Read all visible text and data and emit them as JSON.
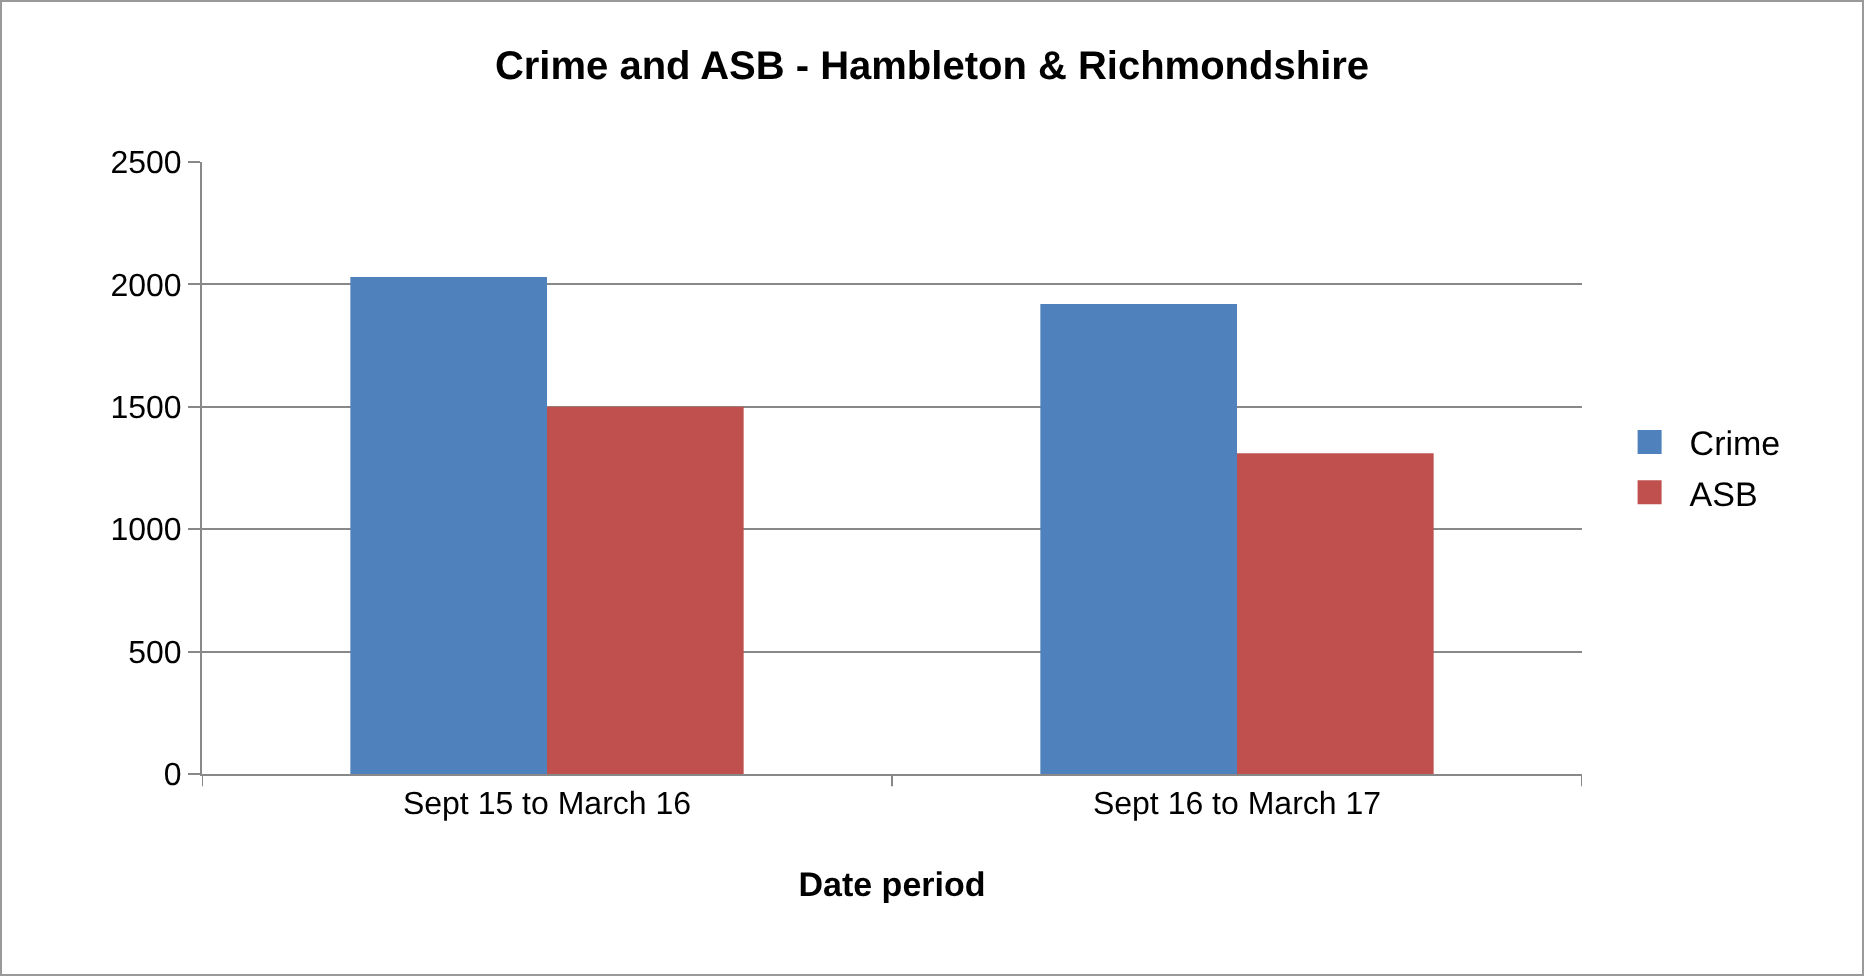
{
  "chart_data": {
    "type": "bar",
    "title": "Crime and ASB - Hambleton & Richmondshire",
    "xlabel": "Date period",
    "categories": [
      "Sept 15 to March 16",
      "Sept 16 to March 17"
    ],
    "series": [
      {
        "name": "Crime",
        "color": "#4f81bd",
        "values": [
          2030,
          1920
        ]
      },
      {
        "name": "ASB",
        "color": "#c0504d",
        "values": [
          1500,
          1310
        ]
      }
    ],
    "ylim": [
      0,
      2500
    ],
    "yticks": [
      0,
      500,
      1000,
      1500,
      2000,
      2500
    ],
    "grid": "y",
    "legend": "right"
  }
}
